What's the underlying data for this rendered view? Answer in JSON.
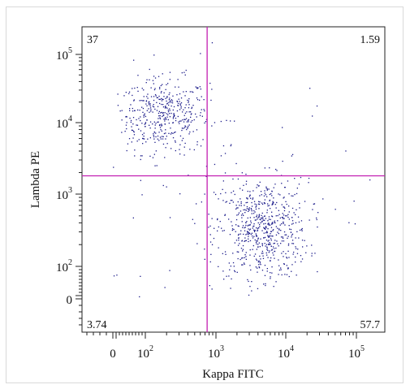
{
  "chart_data": {
    "type": "scatter",
    "title": "",
    "xlabel": "Kappa FITC",
    "ylabel": "Lambda PE",
    "x_scale": "logicle",
    "y_scale": "logicle",
    "x_tick_labels": [
      {
        "value": 0,
        "base": "0",
        "exp": ""
      },
      {
        "value": 100,
        "base": "10",
        "exp": "2"
      },
      {
        "value": 1000,
        "base": "10",
        "exp": "3"
      },
      {
        "value": 10000,
        "base": "10",
        "exp": "4"
      },
      {
        "value": 100000,
        "base": "10",
        "exp": "5"
      }
    ],
    "y_tick_labels": [
      {
        "value": 0,
        "base": "0",
        "exp": ""
      },
      {
        "value": 100,
        "base": "10",
        "exp": "2"
      },
      {
        "value": 1000,
        "base": "10",
        "exp": "3"
      },
      {
        "value": 10000,
        "base": "10",
        "exp": "4"
      },
      {
        "value": 100000,
        "base": "10",
        "exp": "5"
      }
    ],
    "gate": {
      "x": 750,
      "y": 1800,
      "color": "#c21fb2"
    },
    "quadrant_percentages": {
      "upper_left": "37",
      "upper_right": "1.59",
      "lower_left": "3.74",
      "lower_right": "57.7"
    },
    "point_color": "#1c1c8a",
    "populations": [
      {
        "name": "",
        "center": [
          180,
          13000
        ],
        "spread_decades": [
          0.32,
          0.27
        ],
        "count": 420
      },
      {
        "name": "",
        "center": [
          4500,
          330
        ],
        "spread_decades": [
          0.33,
          0.35
        ],
        "count": 640
      },
      {
        "name": "",
        "center": [
          1500,
          1800
        ],
        "spread_decades": [
          1.0,
          0.8
        ],
        "count": 80
      }
    ]
  }
}
